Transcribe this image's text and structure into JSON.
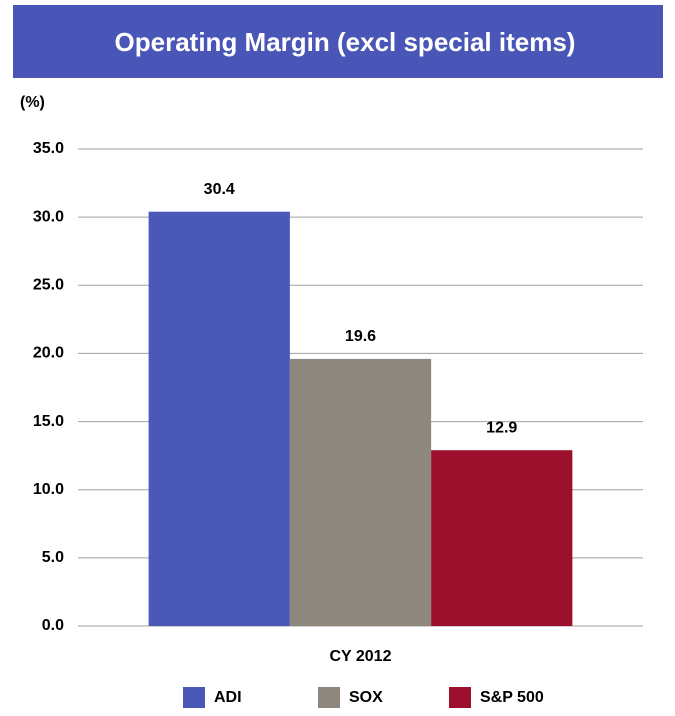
{
  "chart_data": {
    "type": "bar",
    "title": "Operating Margin (excl special items)",
    "y_label": "(%)",
    "categories": [
      "CY 2012"
    ],
    "series": [
      {
        "name": "ADI",
        "color": "#4a58b8",
        "values": [
          30.4
        ]
      },
      {
        "name": "SOX",
        "color": "#8e877e",
        "values": [
          19.6
        ]
      },
      {
        "name": "S&P 500",
        "color": "#9c102e",
        "values": [
          12.9
        ]
      }
    ],
    "ylim": [
      0,
      35
    ],
    "yticks": [
      {
        "value": 0,
        "label": "0.0"
      },
      {
        "value": 5,
        "label": "5.0"
      },
      {
        "value": 10,
        "label": "10.0"
      },
      {
        "value": 15,
        "label": "15.0"
      },
      {
        "value": 20,
        "label": "20.0"
      },
      {
        "value": 25,
        "label": "25.0"
      },
      {
        "value": 30,
        "label": "30.0"
      },
      {
        "value": 35,
        "label": "35.0"
      }
    ],
    "grid": true,
    "legend": "bottom"
  }
}
